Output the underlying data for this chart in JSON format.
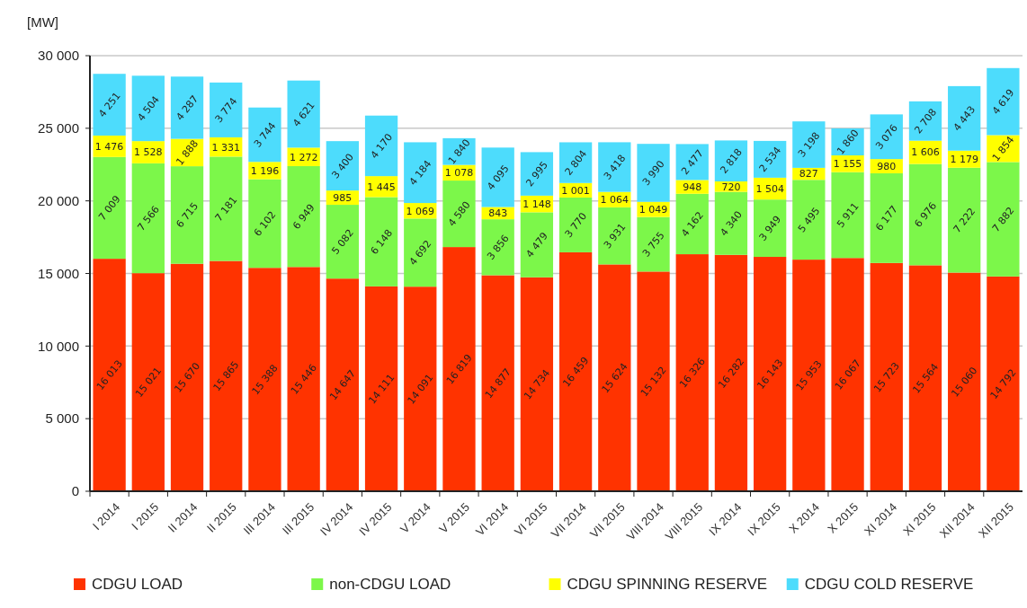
{
  "chart_data": {
    "type": "bar",
    "stacked": true,
    "ylabel": "[MW]",
    "categories": [
      "I 2014",
      "I 2015",
      "II 2014",
      "II 2015",
      "III 2014",
      "III 2015",
      "IV 2014",
      "IV 2015",
      "V 2014",
      "V 2015",
      "VI 2014",
      "VI 2015",
      "VII 2014",
      "VII 2015",
      "VIII 2014",
      "VIII 2015",
      "IX 2014",
      "IX 2015",
      "X 2014",
      "X 2015",
      "XI 2014",
      "XI 2015",
      "XII 2014",
      "XII 2015"
    ],
    "ylim": [
      0,
      30000
    ],
    "yticks": [
      0,
      {
        "value": 5000,
        "label": "5 000"
      },
      {
        "value": 10000,
        "label": "10 000"
      },
      {
        "value": 15000,
        "label": "15 000"
      },
      {
        "value": 20000,
        "label": "20 000"
      },
      {
        "value": 25000,
        "label": "25 000"
      },
      {
        "value": 30000,
        "label": "30 000"
      }
    ],
    "grid": "y",
    "legend": "bottom",
    "series": [
      {
        "name": "CDGU LOAD",
        "color": "#ff3300",
        "values": [
          16013,
          15021,
          15670,
          15865,
          15388,
          15446,
          14647,
          14111,
          14091,
          16819,
          14877,
          14734,
          16459,
          15624,
          15132,
          16326,
          16282,
          16143,
          15953,
          16067,
          15723,
          15564,
          15060,
          14792
        ],
        "value_labels": [
          "16 013",
          "15 021",
          "15 670",
          "15 865",
          "15 388",
          "15 446",
          "14 647",
          "14 111",
          "14 091",
          "16 819",
          "14 877",
          "14 734",
          "16 459",
          "15 624",
          "15 132",
          "16 326",
          "16 282",
          "16 143",
          "15 953",
          "16 067",
          "15 723",
          "15 564",
          "15 060",
          "14 792"
        ]
      },
      {
        "name": "non-CDGU LOAD",
        "color": "#7cf74a",
        "values": [
          7009,
          7566,
          6715,
          7181,
          6102,
          6949,
          5082,
          6148,
          4692,
          4580,
          3856,
          4479,
          3770,
          3931,
          3755,
          4162,
          4340,
          3949,
          5495,
          5911,
          6177,
          6976,
          7222,
          7882
        ],
        "value_labels": [
          "7 009",
          "7 566",
          "6 715",
          "7 181",
          "6 102",
          "6 949",
          "5 082",
          "6 148",
          "4 692",
          "4 580",
          "3 856",
          "4 479",
          "3 770",
          "3 931",
          "3 755",
          "4 162",
          "4 340",
          "3 949",
          "5 495",
          "5 911",
          "6 177",
          "6 976",
          "7 222",
          "7 882"
        ]
      },
      {
        "name": "CDGU SPINNING RESERVE",
        "color": "#ffff00",
        "values": [
          1476,
          1528,
          1888,
          1331,
          1196,
          1272,
          985,
          1445,
          1069,
          1078,
          843,
          1148,
          1001,
          1064,
          1049,
          948,
          720,
          1504,
          827,
          1155,
          980,
          1606,
          1179,
          1854
        ],
        "value_labels": [
          "1 476",
          "1 528",
          "1 888",
          "1 331",
          "1 196",
          "1 272",
          "985",
          "1 445",
          "1 069",
          "1 078",
          "843",
          "1 148",
          "1 001",
          "1 064",
          "1 049",
          "948",
          "720",
          "1 504",
          "827",
          "1 155",
          "980",
          "1 606",
          "1 179",
          "1 854"
        ]
      },
      {
        "name": "CDGU COLD RESERVE",
        "color": "#4ddcfc",
        "values": [
          4251,
          4504,
          4287,
          3774,
          3744,
          4621,
          3400,
          4170,
          4184,
          1840,
          4095,
          2995,
          2804,
          3418,
          3990,
          2477,
          2818,
          2534,
          3198,
          1860,
          3076,
          2708,
          4443,
          4619
        ],
        "value_labels": [
          "4 251",
          "4 504",
          "4 287",
          "3 774",
          "3 744",
          "4 621",
          "3 400",
          "4 170",
          "4 184",
          "1 840",
          "4 095",
          "2 995",
          "2 804",
          "3 418",
          "3 990",
          "2 477",
          "2 818",
          "2 534",
          "3 198",
          "1 860",
          "3 076",
          "2 708",
          "4 443",
          "4 619"
        ]
      }
    ]
  }
}
